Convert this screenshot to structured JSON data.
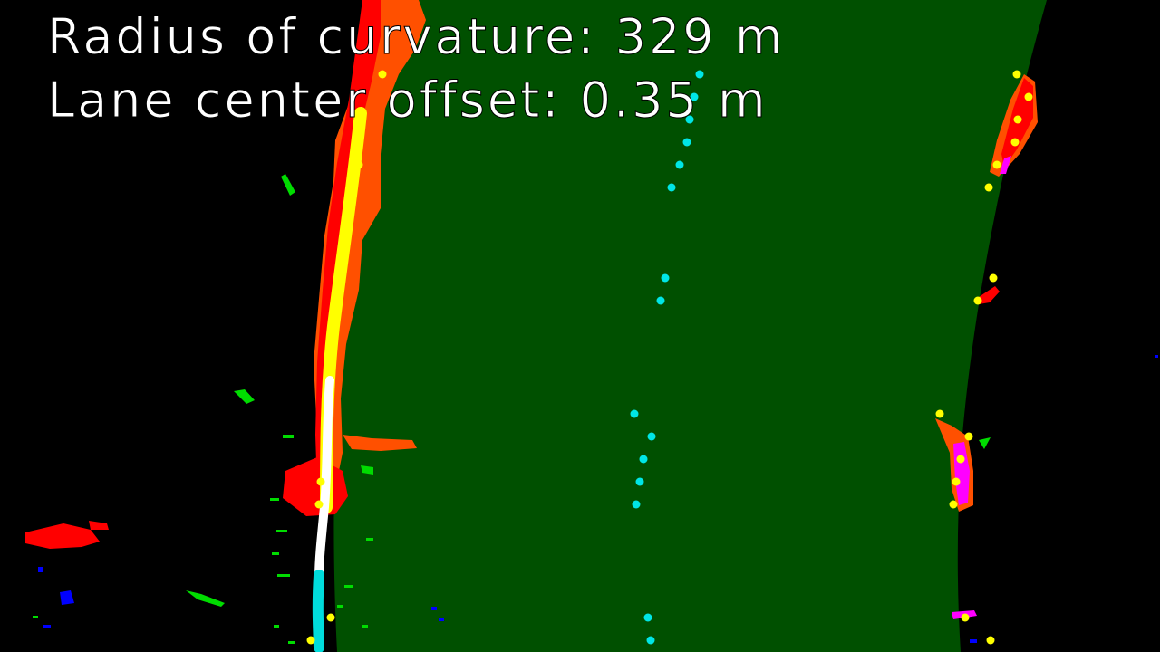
{
  "overlay": {
    "radius_text": "Radius of curvature: 329 m",
    "offset_text": "Lane center offset: 0.35 m"
  },
  "colors": {
    "background": "#000000",
    "lane_fill": "#005000",
    "left_lane_pixels": "#ff0000",
    "left_lane_glow": "#ff5000",
    "right_lane_pixels": "#ff0000",
    "right_lane_highlight": "#ff00ff",
    "lane_center_dots": "#00e6e6",
    "boundary_dots": "#ffff00",
    "fitted_line_core": "#ffff00",
    "fitted_line_bright": "#ffffff",
    "fitted_line_bottom": "#00dcdc",
    "noise_green": "#00dc00",
    "noise_blue": "#0000ff",
    "text": "#ffffff"
  }
}
